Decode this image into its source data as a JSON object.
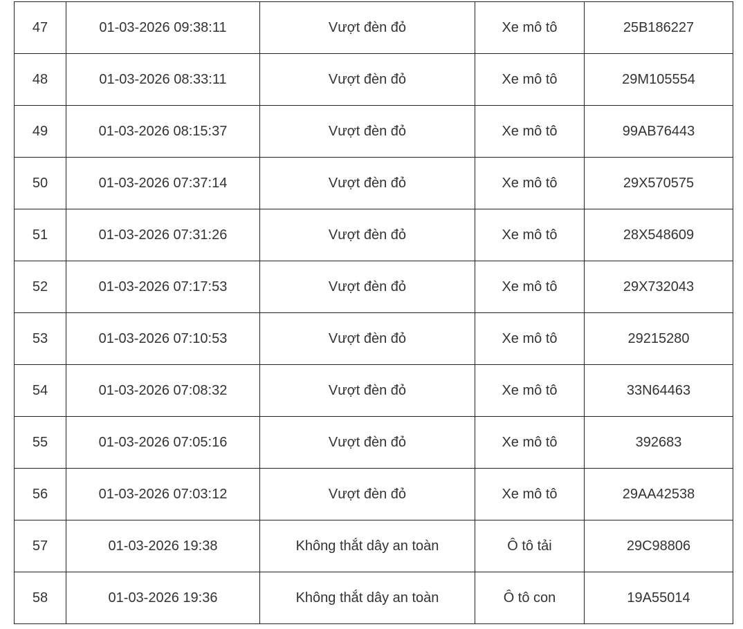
{
  "rows": [
    {
      "no": "47",
      "time": "01-03-2026 09:38:11",
      "violation": "Vượt đèn đỏ",
      "vehicle": "Xe mô tô",
      "plate": "25B186227"
    },
    {
      "no": "48",
      "time": "01-03-2026 08:33:11",
      "violation": "Vượt đèn đỏ",
      "vehicle": "Xe mô tô",
      "plate": "29M105554"
    },
    {
      "no": "49",
      "time": "01-03-2026 08:15:37",
      "violation": "Vượt đèn đỏ",
      "vehicle": "Xe mô tô",
      "plate": "99AB76443"
    },
    {
      "no": "50",
      "time": "01-03-2026 07:37:14",
      "violation": "Vượt đèn đỏ",
      "vehicle": "Xe mô tô",
      "plate": "29X570575"
    },
    {
      "no": "51",
      "time": "01-03-2026 07:31:26",
      "violation": "Vượt đèn đỏ",
      "vehicle": "Xe mô tô",
      "plate": "28X548609"
    },
    {
      "no": "52",
      "time": "01-03-2026 07:17:53",
      "violation": "Vượt đèn đỏ",
      "vehicle": "Xe mô tô",
      "plate": "29X732043"
    },
    {
      "no": "53",
      "time": "01-03-2026 07:10:53",
      "violation": "Vượt đèn đỏ",
      "vehicle": "Xe mô tô",
      "plate": "29215280"
    },
    {
      "no": "54",
      "time": "01-03-2026 07:08:32",
      "violation": "Vượt đèn đỏ",
      "vehicle": "Xe mô tô",
      "plate": "33N64463"
    },
    {
      "no": "55",
      "time": "01-03-2026 07:05:16",
      "violation": "Vượt đèn đỏ",
      "vehicle": "Xe mô tô",
      "plate": "392683"
    },
    {
      "no": "56",
      "time": "01-03-2026 07:03:12",
      "violation": "Vượt đèn đỏ",
      "vehicle": "Xe mô tô",
      "plate": "29AA42538"
    },
    {
      "no": "57",
      "time": "01-03-2026 19:38",
      "violation": "Không thắt dây an toàn",
      "vehicle": "Ô tô tải",
      "plate": "29C98806"
    },
    {
      "no": "58",
      "time": "01-03-2026 19:36",
      "violation": "Không thắt dây an toàn",
      "vehicle": "Ô tô con",
      "plate": "19A55014"
    }
  ]
}
